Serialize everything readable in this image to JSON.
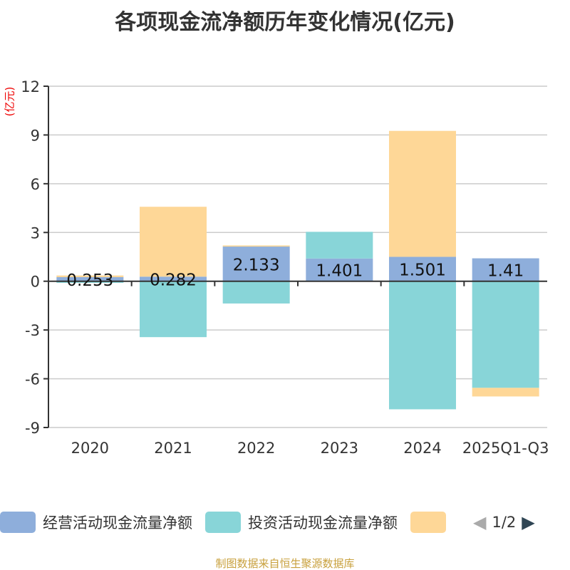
{
  "chart_data": {
    "type": "bar",
    "stacked": true,
    "title": "各项现金流净额历年变化情况(亿元)",
    "ylabel": "(亿元)",
    "ylim": [
      -9,
      12
    ],
    "yticks": [
      12,
      9,
      6,
      3,
      0,
      -3,
      -6,
      -9
    ],
    "categories": [
      "2020",
      "2021",
      "2022",
      "2023",
      "2024",
      "2025Q1-Q3"
    ],
    "series": [
      {
        "name": "经营活动现金流量净额",
        "color": "#8eaedb",
        "values": [
          0.253,
          0.282,
          2.133,
          1.401,
          1.501,
          1.41
        ],
        "labels": [
          "0.253",
          "0.282",
          "2.133",
          "1.401",
          "1.501",
          "1.41"
        ]
      },
      {
        "name": "投资活动现金流量净额",
        "color": "#88d5d8",
        "values": [
          -0.1,
          -3.44,
          -1.37,
          1.64,
          -7.88,
          -6.56
        ]
      },
      {
        "name": "",
        "color": "#fed797",
        "values": [
          0.1,
          4.3,
          0.07,
          0,
          7.75,
          -0.53
        ]
      }
    ],
    "legend": {
      "page": "1/2"
    },
    "source": "制图数据来自恒生聚源数据库"
  }
}
